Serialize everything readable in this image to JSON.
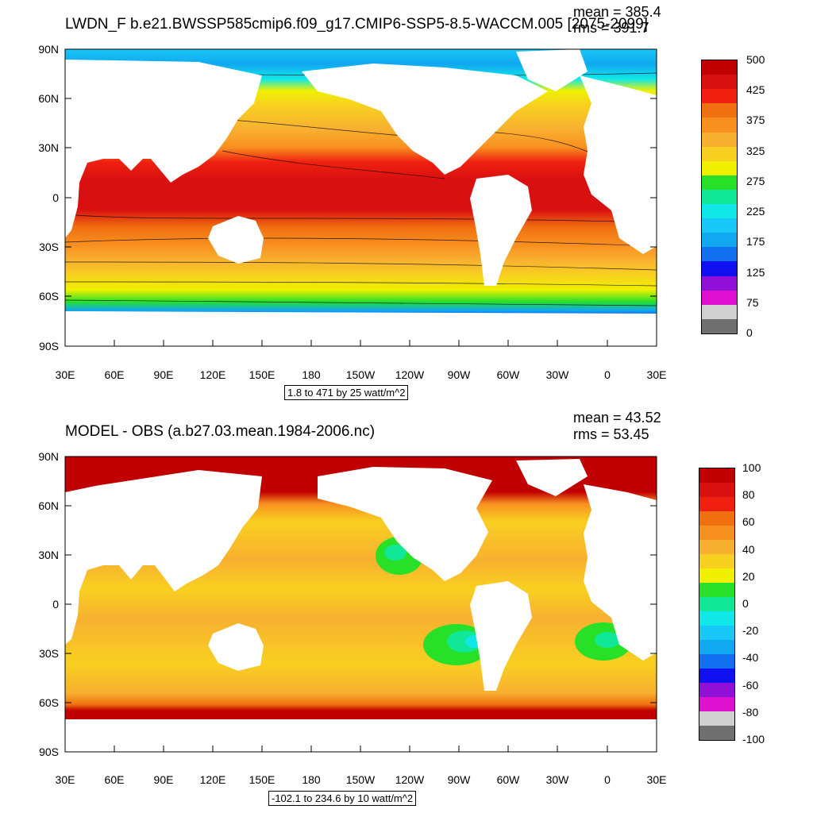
{
  "panels": [
    {
      "title": "LWDN_F b.e21.BWSSP585cmip6.f09_g17.CMIP6-SSP5-8.5-WACCM.005 [2075-2099]",
      "mean": "mean = 385.4",
      "rms": "rms = 391.7",
      "info": "1.8 to 471 by 25 watt/m^2",
      "colorbar": {
        "colors": [
          "#707070",
          "#d0d0d0",
          "#e010d0",
          "#9010d8",
          "#1010f0",
          "#1070f0",
          "#10a8f0",
          "#18c8f8",
          "#10e8e8",
          "#10e898",
          "#28e028",
          "#f0f000",
          "#f8d020",
          "#f8b030",
          "#f89020",
          "#f07010",
          "#f02010",
          "#d81010",
          "#c00000"
        ],
        "labels": [
          "0",
          "75",
          "125",
          "175",
          "225",
          "275",
          "325",
          "375",
          "425",
          "500"
        ]
      }
    },
    {
      "title": "MODEL - OBS (a.b27.03.mean.1984-2006.nc)",
      "mean": "mean = 43.52",
      "rms": "rms = 53.45",
      "info": "-102.1 to 234.6 by 10 watt/m^2",
      "colorbar": {
        "colors": [
          "#707070",
          "#d0d0d0",
          "#e010d0",
          "#9010d8",
          "#1010f0",
          "#1070f0",
          "#10a8f0",
          "#18c8f8",
          "#10e8e8",
          "#10e898",
          "#28e028",
          "#f0f000",
          "#f8d020",
          "#f8b030",
          "#f89020",
          "#f07010",
          "#f02010",
          "#d81010",
          "#c00000"
        ],
        "labels": [
          "-100",
          "-80",
          "-60",
          "-40",
          "-20",
          "0",
          "20",
          "40",
          "60",
          "80",
          "100"
        ]
      }
    }
  ],
  "y_ticks": [
    "90N",
    "60N",
    "30N",
    "0",
    "30S",
    "60S",
    "90S"
  ],
  "x_ticks": [
    "30E",
    "60E",
    "90E",
    "120E",
    "150E",
    "180",
    "150W",
    "120W",
    "90W",
    "60W",
    "30W",
    "0",
    "30E"
  ],
  "colors": {
    "land": "#ffffff",
    "frame": "#000000"
  }
}
